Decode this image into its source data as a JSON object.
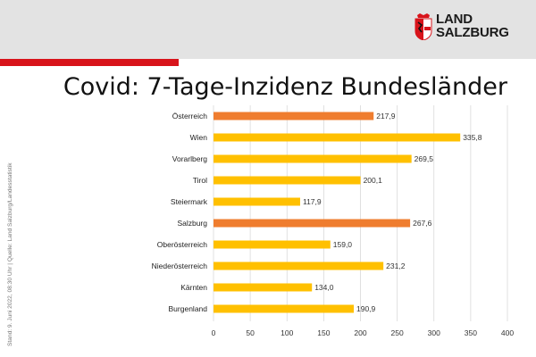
{
  "header": {
    "logo_line1": "LAND",
    "logo_line2": "SALZBURG",
    "colors": {
      "band": "#e3e3e3",
      "accent_red": "#d8141b"
    }
  },
  "source_note": "Stand: 9. Juni 2022, 08:30 Uhr | Quelle: Land Salzburg/Landesstatistik",
  "chart_data": {
    "type": "bar",
    "orientation": "horizontal",
    "title": "Covid: 7-Tage-Inzidenz Bundesländer",
    "categories": [
      "Österreich",
      "Wien",
      "Vorarlberg",
      "Tirol",
      "Steiermark",
      "Salzburg",
      "Oberösterreich",
      "Niederösterreich",
      "Kärnten",
      "Burgenland"
    ],
    "values": [
      217.9,
      335.8,
      269.5,
      200.1,
      117.9,
      267.6,
      159.0,
      231.2,
      134.0,
      190.9
    ],
    "value_labels": [
      "217,9",
      "335,8",
      "269,5",
      "200,1",
      "117,9",
      "267,6",
      "159,0",
      "231,2",
      "134,0",
      "190,9"
    ],
    "bar_colors": [
      "#ef7d2f",
      "#ffc000",
      "#ffc000",
      "#ffc000",
      "#ffc000",
      "#ef7d2f",
      "#ffc000",
      "#ffc000",
      "#ffc000",
      "#ffc000"
    ],
    "xlim": [
      0,
      400
    ],
    "xticks": [
      0,
      50,
      100,
      150,
      200,
      250,
      300,
      350,
      400
    ],
    "grid": true,
    "xlabel": "",
    "ylabel": ""
  }
}
